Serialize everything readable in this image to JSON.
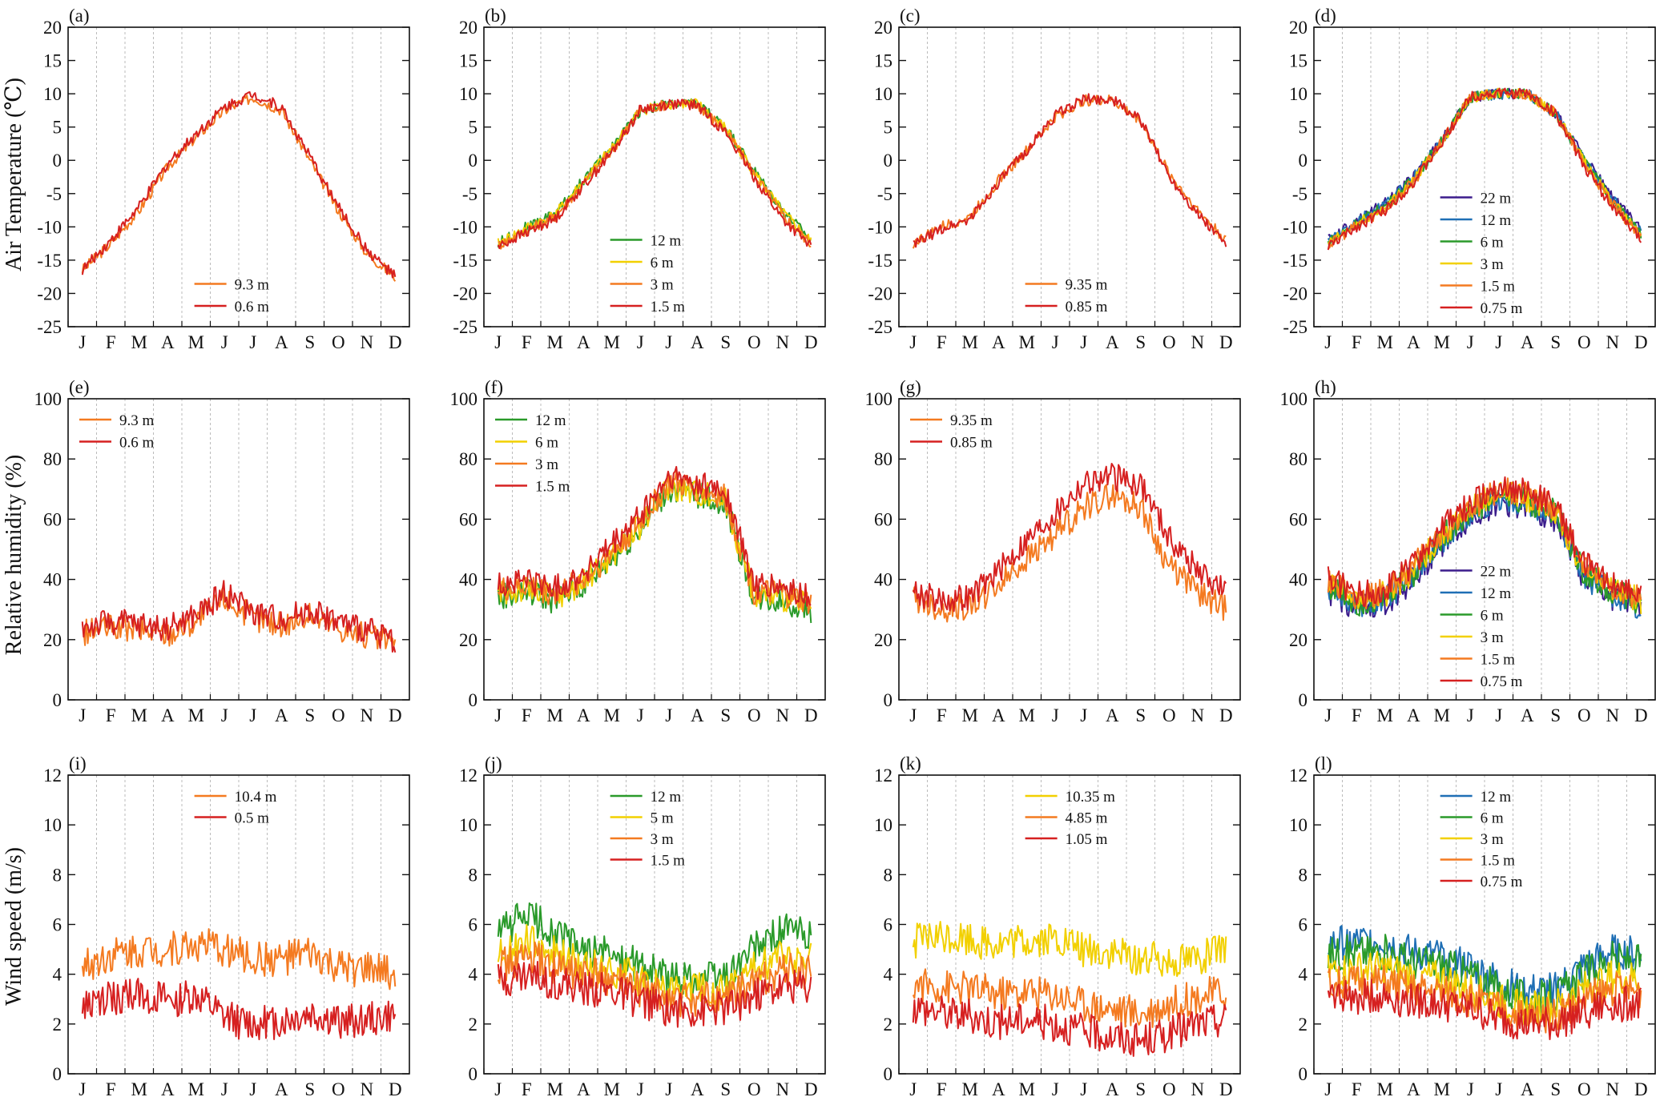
{
  "figure": {
    "row_ylabels": [
      "Air Temperature (℃)",
      "Relative humidity (%)",
      "Wind speed (m/s)"
    ],
    "colors": {
      "purple": "#3b1c8c",
      "blue": "#1f6fb5",
      "green": "#2a9a2a",
      "yellow": "#f2d000",
      "orange": "#f47a20",
      "red": "#d62020",
      "grid": "#bbbbbb"
    }
  },
  "chart_data": [
    {
      "panel": "(a)",
      "type": "line",
      "categories": [
        "J",
        "F",
        "M",
        "A",
        "M",
        "J",
        "J",
        "A",
        "S",
        "O",
        "N",
        "D"
      ],
      "ylim": [
        -25,
        20
      ],
      "yticks": [
        -25,
        -20,
        -15,
        -10,
        -5,
        0,
        5,
        10,
        15,
        20
      ],
      "grid": "vertical dashed",
      "legend": "bottom-center",
      "series": [
        {
          "name": "9.3 m",
          "color": "orange",
          "values": [
            -16.5,
            -12.5,
            -7.5,
            -1,
            3.5,
            7.5,
            9.5,
            7.5,
            0,
            -7.5,
            -14,
            -17.5
          ]
        },
        {
          "name": "0.6 m",
          "color": "red",
          "values": [
            -16.5,
            -12,
            -7,
            -0.5,
            4,
            8,
            10,
            8,
            0.5,
            -7,
            -13.5,
            -17.5
          ]
        }
      ]
    },
    {
      "panel": "(b)",
      "type": "line",
      "categories": [
        "J",
        "F",
        "M",
        "A",
        "M",
        "J",
        "J",
        "A",
        "S",
        "O",
        "N",
        "D"
      ],
      "ylim": [
        -25,
        20
      ],
      "yticks": [
        -25,
        -20,
        -15,
        -10,
        -5,
        0,
        5,
        10,
        15,
        20
      ],
      "grid": "vertical dashed",
      "legend": "bottom-center",
      "series": [
        {
          "name": "12 m",
          "color": "green",
          "values": [
            -12.5,
            -10,
            -8,
            -3,
            2,
            7.5,
            8.5,
            8.5,
            5,
            -1.5,
            -7.5,
            -12
          ]
        },
        {
          "name": "6 m",
          "color": "yellow",
          "values": [
            -12.5,
            -10.2,
            -8.2,
            -3.2,
            1.8,
            7.5,
            8.5,
            8.5,
            4.8,
            -1.8,
            -7.8,
            -12.2
          ]
        },
        {
          "name": "3 m",
          "color": "orange",
          "values": [
            -12.8,
            -10.5,
            -8.5,
            -3.5,
            1.5,
            7.5,
            8.5,
            8.4,
            4.5,
            -2,
            -8.2,
            -12.6
          ]
        },
        {
          "name": "1.5 m",
          "color": "red",
          "values": [
            -13,
            -10.8,
            -8.8,
            -3.8,
            1.2,
            7.6,
            8.5,
            8.3,
            4.2,
            -2.5,
            -8.8,
            -13
          ]
        }
      ]
    },
    {
      "panel": "(c)",
      "type": "line",
      "categories": [
        "J",
        "F",
        "M",
        "A",
        "M",
        "J",
        "J",
        "A",
        "S",
        "O",
        "N",
        "D"
      ],
      "ylim": [
        -25,
        20
      ],
      "yticks": [
        -25,
        -20,
        -15,
        -10,
        -5,
        0,
        5,
        10,
        15,
        20
      ],
      "grid": "vertical dashed",
      "legend": "bottom-center",
      "series": [
        {
          "name": "9.35 m",
          "color": "orange",
          "values": [
            -12.5,
            -10,
            -8.5,
            -3,
            1.5,
            6.5,
            9,
            9,
            6,
            -2,
            -7.5,
            -12
          ]
        },
        {
          "name": "0.85 m",
          "color": "red",
          "values": [
            -12.8,
            -10.3,
            -8.8,
            -3.3,
            1.5,
            6.8,
            9.2,
            9.2,
            6,
            -2.3,
            -8,
            -12.6
          ]
        }
      ]
    },
    {
      "panel": "(d)",
      "type": "line",
      "categories": [
        "J",
        "F",
        "M",
        "A",
        "M",
        "J",
        "J",
        "A",
        "S",
        "O",
        "N",
        "D"
      ],
      "ylim": [
        -25,
        20
      ],
      "yticks": [
        -25,
        -20,
        -15,
        -10,
        -5,
        0,
        5,
        10,
        15,
        20
      ],
      "grid": "vertical dashed",
      "legend": "bottom-right",
      "series": [
        {
          "name": "22 m",
          "color": "purple",
          "values": [
            -12,
            -9,
            -6.5,
            -2.5,
            3,
            9.5,
            10,
            10,
            7,
            0.5,
            -5.5,
            -10.5
          ]
        },
        {
          "name": "12 m",
          "color": "blue",
          "values": [
            -12.2,
            -9.2,
            -6.7,
            -2.6,
            3,
            9.5,
            10,
            10,
            7,
            0.2,
            -5.8,
            -10.8
          ]
        },
        {
          "name": "6 m",
          "color": "green",
          "values": [
            -12.4,
            -9.4,
            -6.9,
            -2.8,
            2.9,
            9.5,
            10,
            10,
            7,
            0,
            -6,
            -11
          ]
        },
        {
          "name": "3 m",
          "color": "yellow",
          "values": [
            -12.6,
            -9.6,
            -7.1,
            -3,
            2.8,
            9.5,
            10,
            10,
            7,
            -0.3,
            -6.3,
            -11.3
          ]
        },
        {
          "name": "1.5 m",
          "color": "orange",
          "values": [
            -12.8,
            -9.8,
            -7.3,
            -3.2,
            2.7,
            9.5,
            10,
            10,
            7,
            -0.5,
            -6.6,
            -11.6
          ]
        },
        {
          "name": "0.75 m",
          "color": "red",
          "values": [
            -13,
            -10,
            -7.5,
            -3.4,
            2.6,
            9.6,
            10.1,
            10,
            7,
            -0.8,
            -7,
            -12
          ]
        }
      ]
    },
    {
      "panel": "(e)",
      "type": "line",
      "categories": [
        "J",
        "F",
        "M",
        "A",
        "M",
        "J",
        "J",
        "A",
        "S",
        "O",
        "N",
        "D"
      ],
      "ylim": [
        0,
        100
      ],
      "yticks": [
        0,
        20,
        40,
        60,
        80,
        100
      ],
      "grid": "vertical dashed",
      "legend": "top-left",
      "series": [
        {
          "name": "9.3 m",
          "color": "orange",
          "values": [
            22,
            24,
            23,
            22,
            26,
            34,
            27,
            25,
            28,
            24,
            21,
            19
          ]
        },
        {
          "name": "0.6 m",
          "color": "red",
          "values": [
            24,
            26,
            25,
            24,
            28,
            36,
            29,
            27,
            30,
            26,
            23,
            20
          ]
        }
      ]
    },
    {
      "panel": "(f)",
      "type": "line",
      "categories": [
        "J",
        "F",
        "M",
        "A",
        "M",
        "J",
        "J",
        "A",
        "S",
        "O",
        "N",
        "D"
      ],
      "ylim": [
        0,
        100
      ],
      "yticks": [
        0,
        20,
        40,
        60,
        80,
        100
      ],
      "grid": "vertical dashed",
      "legend": "top-left",
      "series": [
        {
          "name": "12 m",
          "color": "green",
          "values": [
            34,
            36,
            33,
            38,
            47,
            57,
            70,
            68,
            65,
            34,
            33,
            30
          ]
        },
        {
          "name": "6 m",
          "color": "yellow",
          "values": [
            35,
            37,
            34,
            39,
            48,
            58,
            71,
            69,
            66,
            35,
            34,
            31
          ]
        },
        {
          "name": "3 m",
          "color": "orange",
          "values": [
            36,
            38,
            35,
            40,
            49,
            59,
            72,
            70,
            67,
            36,
            35,
            32
          ]
        },
        {
          "name": "1.5 m",
          "color": "red",
          "values": [
            38,
            40,
            37,
            42,
            51,
            61,
            74,
            72,
            69,
            38,
            37,
            34
          ]
        }
      ]
    },
    {
      "panel": "(g)",
      "type": "line",
      "categories": [
        "J",
        "F",
        "M",
        "A",
        "M",
        "J",
        "J",
        "A",
        "S",
        "O",
        "N",
        "D"
      ],
      "ylim": [
        0,
        100
      ],
      "yticks": [
        0,
        20,
        40,
        60,
        80,
        100
      ],
      "grid": "vertical dashed",
      "legend": "top-left",
      "series": [
        {
          "name": "9.35 m",
          "color": "orange",
          "values": [
            34,
            30,
            31,
            38,
            47,
            55,
            64,
            68,
            64,
            44,
            36,
            30
          ]
        },
        {
          "name": "0.85 m",
          "color": "red",
          "values": [
            36,
            33,
            34,
            43,
            53,
            62,
            72,
            74,
            72,
            54,
            43,
            36
          ]
        }
      ]
    },
    {
      "panel": "(h)",
      "type": "line",
      "categories": [
        "J",
        "F",
        "M",
        "A",
        "M",
        "J",
        "J",
        "A",
        "S",
        "O",
        "N",
        "D"
      ],
      "ylim": [
        0,
        100
      ],
      "yticks": [
        0,
        20,
        40,
        60,
        80,
        100
      ],
      "grid": "vertical dashed",
      "legend": "bottom-right",
      "series": [
        {
          "name": "22 m",
          "color": "purple",
          "values": [
            36,
            30,
            32,
            40,
            52,
            60,
            66,
            64,
            60,
            40,
            34,
            30
          ]
        },
        {
          "name": "12 m",
          "color": "blue",
          "values": [
            37,
            31,
            33,
            41,
            53,
            61,
            67,
            65,
            61,
            41,
            35,
            31
          ]
        },
        {
          "name": "6 m",
          "color": "green",
          "values": [
            38,
            32,
            34,
            42,
            54,
            62,
            68,
            66,
            62,
            42,
            36,
            32
          ]
        },
        {
          "name": "3 m",
          "color": "yellow",
          "values": [
            39,
            33,
            35,
            43,
            55,
            63,
            69,
            67,
            63,
            43,
            37,
            33
          ]
        },
        {
          "name": "1.5 m",
          "color": "orange",
          "values": [
            40,
            34,
            36,
            44,
            56,
            64,
            70,
            68,
            64,
            44,
            38,
            34
          ]
        },
        {
          "name": "0.75 m",
          "color": "red",
          "values": [
            41,
            35,
            37,
            45,
            57,
            65,
            71,
            69,
            65,
            45,
            39,
            35
          ]
        }
      ]
    },
    {
      "panel": "(i)",
      "type": "line",
      "categories": [
        "J",
        "F",
        "M",
        "A",
        "M",
        "J",
        "J",
        "A",
        "S",
        "O",
        "N",
        "D"
      ],
      "ylim": [
        0,
        12
      ],
      "yticks": [
        0,
        2,
        4,
        6,
        8,
        10,
        12
      ],
      "grid": "vertical dashed",
      "legend": "top-center",
      "series": [
        {
          "name": "10.4 m",
          "color": "orange",
          "values": [
            4.3,
            4.8,
            5,
            5,
            5.2,
            5,
            4.6,
            4.6,
            4.8,
            4.2,
            4.2,
            4
          ]
        },
        {
          "name": "0.5 m",
          "color": "red",
          "values": [
            2.6,
            3,
            3.2,
            2.9,
            3.1,
            2.2,
            2,
            2.1,
            2.4,
            2.1,
            2.2,
            2.3
          ]
        }
      ]
    },
    {
      "panel": "(j)",
      "type": "line",
      "categories": [
        "J",
        "F",
        "M",
        "A",
        "M",
        "J",
        "J",
        "A",
        "S",
        "O",
        "N",
        "D"
      ],
      "ylim": [
        0,
        12
      ],
      "yticks": [
        0,
        2,
        4,
        6,
        8,
        10,
        12
      ],
      "grid": "vertical dashed",
      "legend": "top-center",
      "series": [
        {
          "name": "12 m",
          "color": "green",
          "values": [
            5.6,
            6.4,
            5.6,
            5,
            4.8,
            4.3,
            3.9,
            3.8,
            3.9,
            5,
            5.8,
            5.5
          ]
        },
        {
          "name": "5 m",
          "color": "yellow",
          "values": [
            4.8,
            5.3,
            4.8,
            4.4,
            4.2,
            3.8,
            3.4,
            3.4,
            3.4,
            4.2,
            4.8,
            4.6
          ]
        },
        {
          "name": "3 m",
          "color": "orange",
          "values": [
            4.3,
            4.7,
            4.3,
            4,
            3.8,
            3.4,
            3,
            3,
            3,
            3.7,
            4.2,
            4.1
          ]
        },
        {
          "name": "1.5 m",
          "color": "red",
          "values": [
            3.7,
            4,
            3.7,
            3.4,
            3.3,
            2.9,
            2.6,
            2.5,
            2.6,
            3.1,
            3.5,
            3.5
          ]
        }
      ]
    },
    {
      "panel": "(k)",
      "type": "line",
      "categories": [
        "J",
        "F",
        "M",
        "A",
        "M",
        "J",
        "J",
        "A",
        "S",
        "O",
        "N",
        "D"
      ],
      "ylim": [
        0,
        12
      ],
      "yticks": [
        0,
        2,
        4,
        6,
        8,
        10,
        12
      ],
      "grid": "vertical dashed",
      "legend": "top-center",
      "series": [
        {
          "name": "10.35 m",
          "color": "yellow",
          "values": [
            5.3,
            5.5,
            5.4,
            5.2,
            5.3,
            5.4,
            5,
            4.8,
            4.6,
            4.6,
            4.7,
            4.9
          ]
        },
        {
          "name": "4.85 m",
          "color": "orange",
          "values": [
            3.6,
            3.5,
            3.4,
            3.2,
            3.3,
            3.2,
            2.8,
            2.6,
            2.4,
            2.8,
            3.1,
            3.3
          ]
        },
        {
          "name": "1.05 m",
          "color": "red",
          "values": [
            2.7,
            2.5,
            2.3,
            2.1,
            2.2,
            2,
            1.7,
            1.5,
            1.3,
            1.6,
            2,
            2.2
          ]
        }
      ]
    },
    {
      "panel": "(l)",
      "type": "line",
      "categories": [
        "J",
        "F",
        "M",
        "A",
        "M",
        "J",
        "J",
        "A",
        "S",
        "O",
        "N",
        "D"
      ],
      "ylim": [
        0,
        12
      ],
      "yticks": [
        0,
        2,
        4,
        6,
        8,
        10,
        12
      ],
      "grid": "vertical dashed",
      "legend": "top-center",
      "series": [
        {
          "name": "12 m",
          "color": "blue",
          "values": [
            5.2,
            5.3,
            5.3,
            4.8,
            4.7,
            4.3,
            3.7,
            3.3,
            3.4,
            4.3,
            4.9,
            4.8
          ]
        },
        {
          "name": "6 m",
          "color": "green",
          "values": [
            4.8,
            4.9,
            4.9,
            4.5,
            4.4,
            4,
            3.4,
            3,
            3.1,
            4,
            4.6,
            4.5
          ]
        },
        {
          "name": "3 m",
          "color": "yellow",
          "values": [
            4.1,
            4.2,
            4.2,
            3.9,
            3.8,
            3.4,
            2.9,
            2.6,
            2.7,
            3.4,
            3.9,
            3.8
          ]
        },
        {
          "name": "1.5 m",
          "color": "orange",
          "values": [
            3.6,
            3.7,
            3.7,
            3.4,
            3.3,
            3,
            2.6,
            2.3,
            2.4,
            3,
            3.4,
            3.3
          ]
        },
        {
          "name": "0.75 m",
          "color": "red",
          "values": [
            3.1,
            3.1,
            3.1,
            2.9,
            2.8,
            2.6,
            2.2,
            2,
            2,
            2.5,
            2.8,
            2.8
          ]
        }
      ]
    }
  ]
}
